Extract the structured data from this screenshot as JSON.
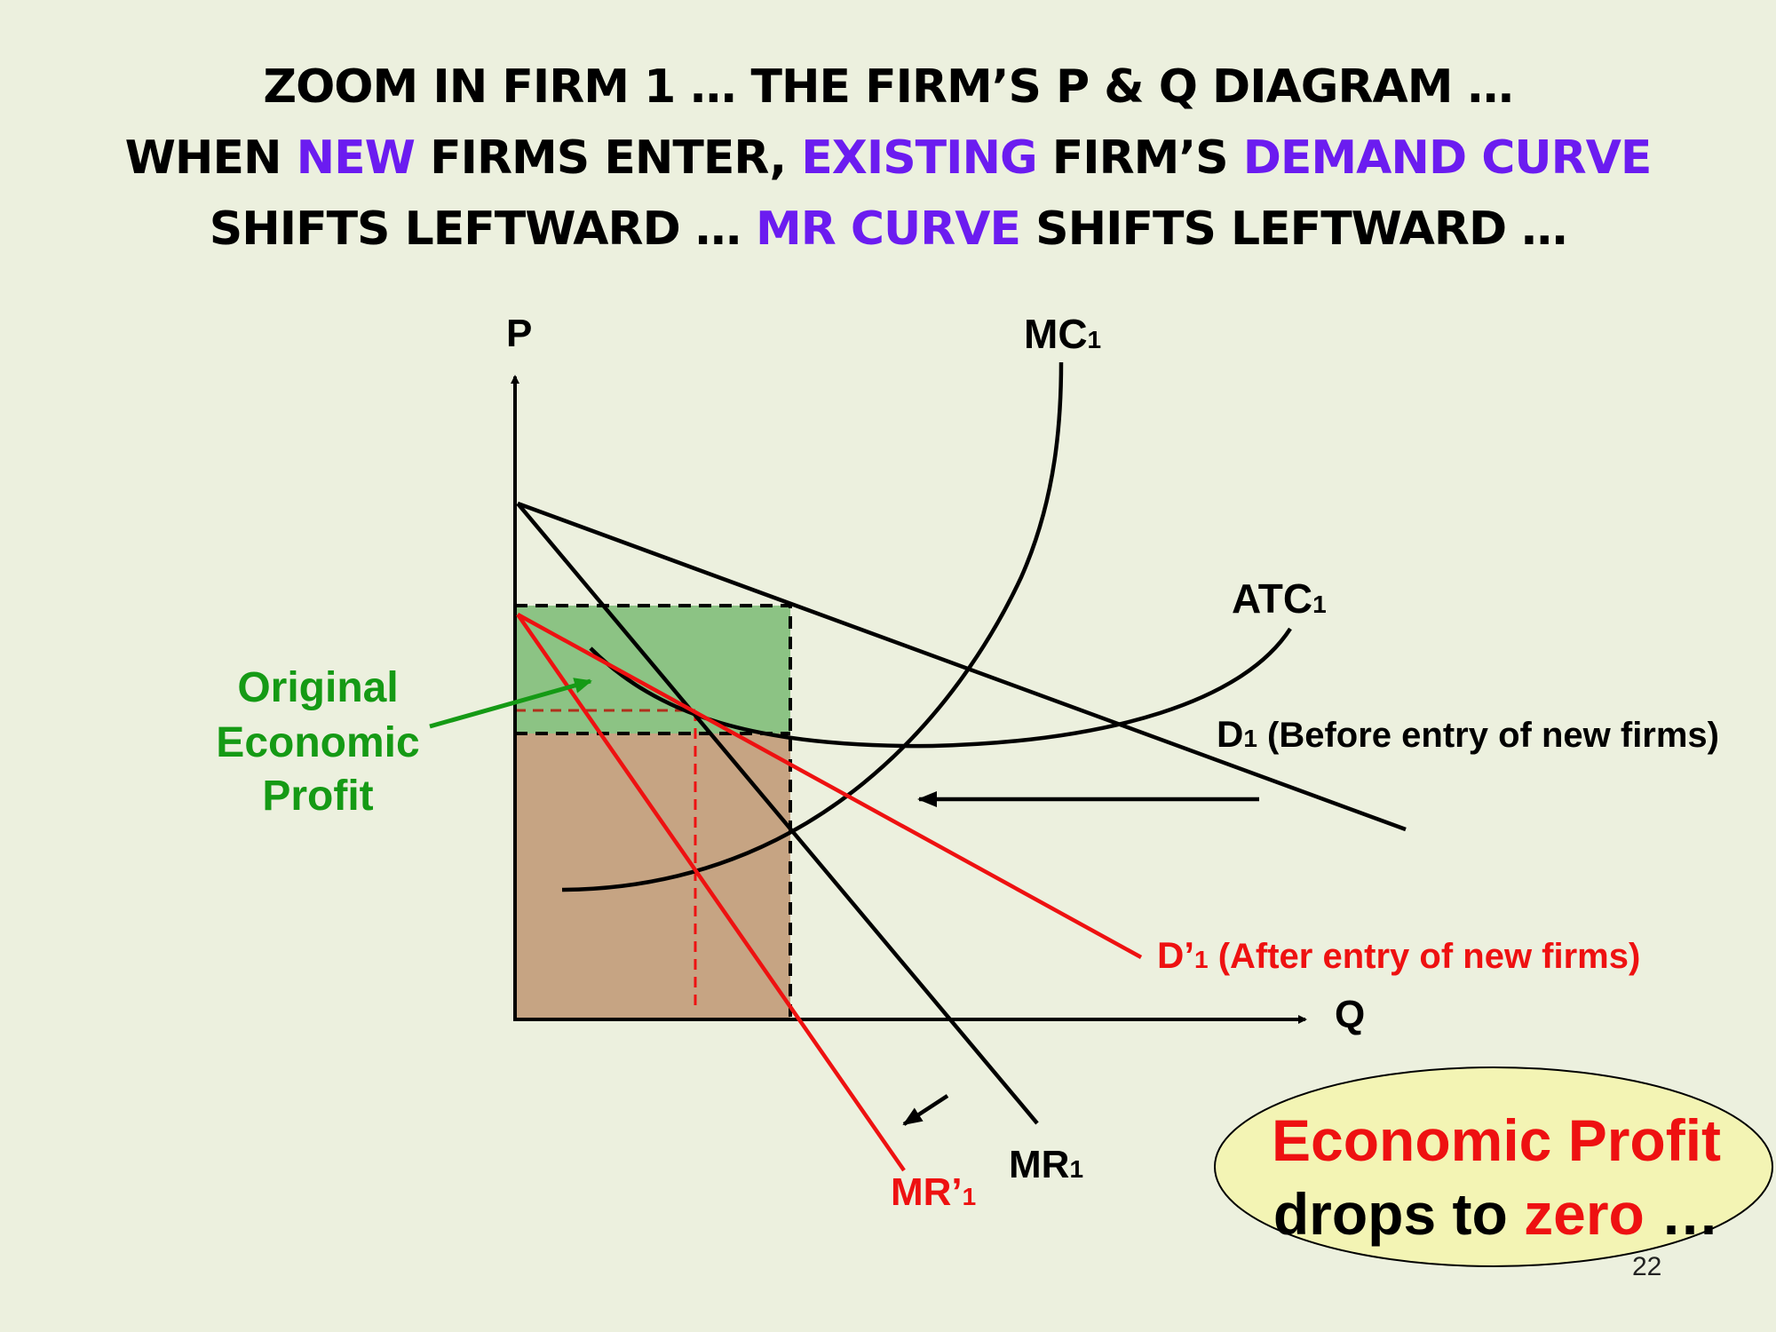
{
  "title": {
    "line1": "ZOOM IN FIRM 1 … THE FIRM’S P & Q DIAGRAM …",
    "line2": [
      {
        "text": "WHEN ",
        "highlight": false
      },
      {
        "text": "NEW",
        "highlight": true
      },
      {
        "text": " FIRMS ENTER, ",
        "highlight": false
      },
      {
        "text": "EXISTING",
        "highlight": true
      },
      {
        "text": " FIRM’S ",
        "highlight": false
      },
      {
        "text": "DEMAND CURVE",
        "highlight": true
      }
    ],
    "line3": [
      {
        "text": "SHIFTS LEFTWARD … ",
        "highlight": false
      },
      {
        "text": "MR CURVE",
        "highlight": true
      },
      {
        "text": " SHIFTS LEFTWARD …",
        "highlight": false
      }
    ]
  },
  "colors": {
    "background": "#ecf0de",
    "highlight": "#6b1cf0",
    "red": "#ee1111",
    "green_text": "#159a15",
    "profit_area": "#8cc384",
    "cost_area": "#c6a483",
    "bubble_fill": "#f3f4b4"
  },
  "axes": {
    "y_label": "P",
    "x_label": "Q"
  },
  "labels": {
    "mc": "MC",
    "mc_sub": "1",
    "atc": "ATC",
    "atc_sub": "1",
    "d1": "D",
    "d1_sub": "1",
    "d1_note": " (Before entry of new firms)",
    "d1_prime": "D’",
    "d1_prime_sub": "1",
    "d1_prime_note": " (After entry of new firms)",
    "mr1": "MR",
    "mr1_sub": "1",
    "mr1_prime": "MR’",
    "mr1_prime_sub": "1"
  },
  "annotation": {
    "line1": "Original",
    "line2": "Economic",
    "line3": "Profit"
  },
  "callout": {
    "line1": "Economic Profit",
    "line2_a": "drops to ",
    "line2_b": "zero",
    "line2_c": " …"
  },
  "page_number": "22"
}
